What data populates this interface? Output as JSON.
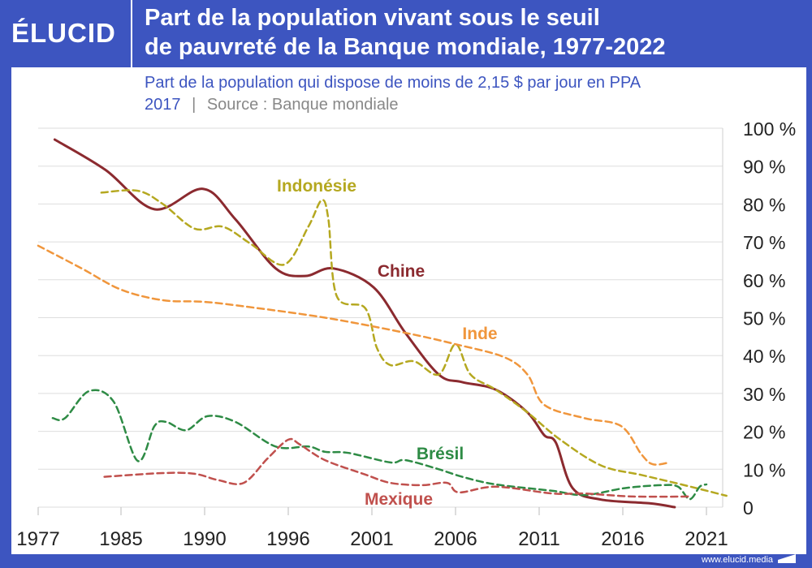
{
  "header": {
    "logo": "ÉLUCID",
    "title_line1": "Part de la population vivant sous le seuil",
    "title_line2": "de pauvreté de la Banque mondiale, 1977-2022",
    "subtitle_line1": "Part de la population qui dispose de moins de 2,15 $ par jour en PPA",
    "subtitle_year": "2017",
    "subtitle_sep": "|",
    "subtitle_source": "Source : Banque mondiale"
  },
  "footer": {
    "url": "www.elucid.media"
  },
  "colors": {
    "frame": "#3d55c0",
    "chine": "#8b2a2f",
    "indonesie": "#b5a820",
    "inde": "#f0963c",
    "bresil": "#2e8b45",
    "mexique": "#c0504d"
  },
  "chart_data": {
    "type": "line",
    "title": "Part de la population vivant sous le seuil de pauvreté de la Banque mondiale, 1977-2022",
    "ylim": [
      0,
      100
    ],
    "y_ticks": [
      {
        "v": 100,
        "label": "100 %"
      },
      {
        "v": 90,
        "label": "90 %"
      },
      {
        "v": 80,
        "label": "80 %"
      },
      {
        "v": 70,
        "label": "70 %"
      },
      {
        "v": 60,
        "label": "60 %"
      },
      {
        "v": 50,
        "label": "50 %"
      },
      {
        "v": 40,
        "label": "40 %"
      },
      {
        "v": 30,
        "label": "30 %"
      },
      {
        "v": 20,
        "label": "20 %"
      },
      {
        "v": 10,
        "label": "10 %"
      },
      {
        "v": 0,
        "label": "0"
      }
    ],
    "x_ticks": [
      "1977",
      "1985",
      "1990",
      "1996",
      "2001",
      "2006",
      "2011",
      "2016",
      "2021"
    ],
    "grid": true,
    "series": [
      {
        "name": "Chine",
        "label": "Chine",
        "style": "solid",
        "color": "#8b2a2f",
        "x": [
          1978.6,
          1983.5,
          1987.0,
          1989.9,
          1992.2,
          1995.1,
          1997.0,
          1998.7,
          2001.1,
          2003.0,
          2005.0,
          2006.4,
          2008.4,
          2010.3,
          2011.3,
          2012.0,
          2013.0,
          2014.7,
          2017.6,
          2019.1
        ],
        "y": [
          97,
          89,
          78.6,
          84,
          76,
          63,
          61,
          63,
          58,
          46,
          35,
          33,
          31,
          25,
          19,
          17,
          5,
          2,
          1,
          0
        ]
      },
      {
        "name": "Indonésie",
        "label": "Indonésie",
        "style": "dashed",
        "color": "#b5a820",
        "x": [
          1983.1,
          1986.0,
          1987.5,
          1989.4,
          1991.3,
          1993.3,
          1995.7,
          1997.2,
          1998.0,
          1998.4,
          1998.9,
          2000.6,
          2001.3,
          2002.1,
          2003.5,
          2005.0,
          2006.0,
          2006.9,
          2008.4,
          2010.3,
          2012.2,
          2014.7,
          2017.1,
          2019.5,
          2022.2
        ],
        "y": [
          83,
          83.5,
          80,
          73.5,
          74,
          69.5,
          64,
          74,
          81,
          76,
          55.7,
          52.5,
          42,
          37.5,
          38.5,
          35,
          43,
          35,
          31,
          25,
          18,
          11,
          8.5,
          6,
          3
        ]
      },
      {
        "name": "Inde",
        "label": "Inde",
        "style": "dashed",
        "color": "#f0963c",
        "x": [
          1977,
          1981.2,
          1985.0,
          1987.5,
          1989.9,
          1992.8,
          1998.2,
          2003.0,
          2006.0,
          2008.9,
          2010.3,
          2011.3,
          2013.7,
          2015.9,
          2017.1,
          2017.8,
          2018.8
        ],
        "y": [
          69,
          63,
          57.4,
          54.6,
          54.2,
          53,
          50,
          46,
          43,
          39.6,
          35,
          27,
          23.5,
          21.4,
          14,
          11.3,
          11.8
        ]
      },
      {
        "name": "Brésil",
        "label": "Brésil",
        "style": "dashed",
        "color": "#2e8b45",
        "x": [
          1978.4,
          1979.6,
          1981.9,
          1984.3,
          1986.0,
          1987.0,
          1987.7,
          1988.9,
          1990.2,
          1992.2,
          1995.1,
          1997.2,
          1998.2,
          1999.6,
          2002.1,
          2003.0,
          2005.0,
          2006.4,
          2008.4,
          2011.8,
          2013.7,
          2016.1,
          2018.3,
          2019.3,
          2020.0,
          2020.6,
          2021.0
        ],
        "y": [
          23.5,
          23.5,
          30.6,
          27.8,
          12.2,
          21.4,
          22.5,
          20.3,
          24,
          22.5,
          16,
          16,
          14.6,
          14.3,
          11.8,
          12.4,
          10,
          8,
          6,
          4.3,
          3.2,
          5,
          5.8,
          5.4,
          2.1,
          5.4,
          6
        ]
      },
      {
        "name": "Mexique",
        "label": "Mexique",
        "style": "dashed",
        "color": "#c0504d",
        "x": [
          1983.4,
          1987.5,
          1989.4,
          1991.0,
          1992.8,
          1994.5,
          1996.0,
          1996.7,
          1998.2,
          2000.6,
          2002.1,
          2004.0,
          2005.5,
          2006.2,
          2008.4,
          2011.8,
          2013.7,
          2016.6,
          2020.0
        ],
        "y": [
          8,
          9,
          8.8,
          7.1,
          6.4,
          12.8,
          17.8,
          16.5,
          12.4,
          8.6,
          6.4,
          5.8,
          6.4,
          3.9,
          5.4,
          3.6,
          3.6,
          2.8,
          2.8
        ]
      }
    ]
  }
}
